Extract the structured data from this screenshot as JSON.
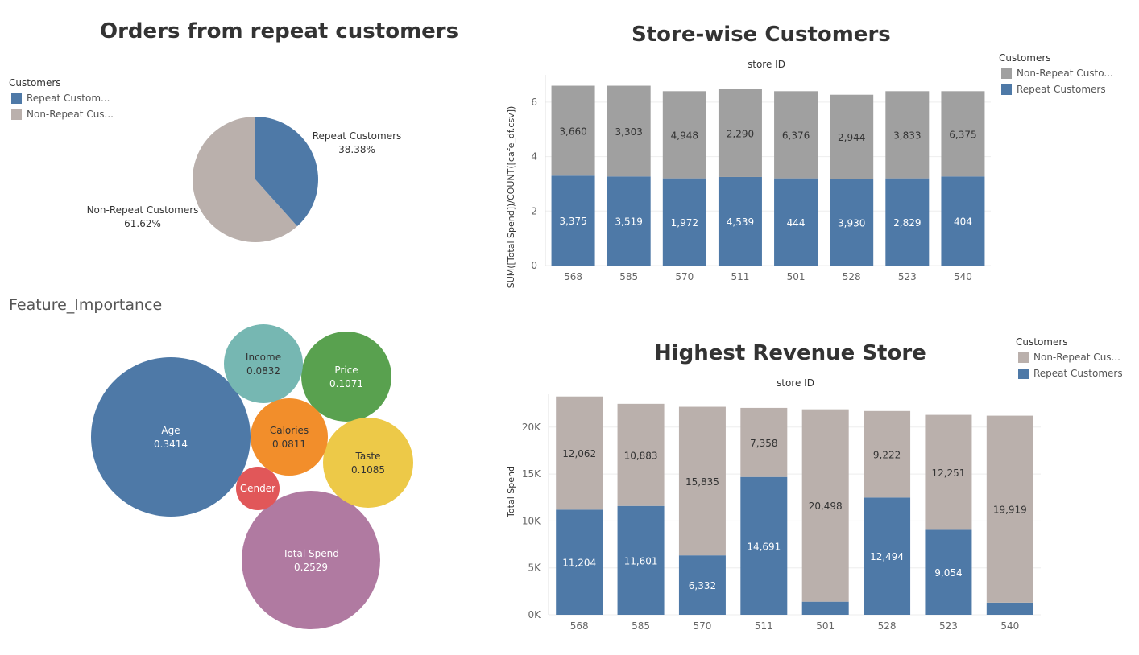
{
  "colors": {
    "repeat": "#4e79a7",
    "non_repeat_pie": "#bab0ac",
    "non_repeat_gray": "#a0a0a0",
    "text": "#333333"
  },
  "pie_panel": {
    "title": "Orders from repeat customers",
    "legend_title": "Customers",
    "legend_items": [
      "Repeat Custom...",
      "Non-Repeat Cus..."
    ],
    "label_repeat": "Repeat Customers",
    "label_repeat_pct": "38.38%",
    "label_nonrepeat": "Non-Repeat Customers",
    "label_nonrepeat_pct": "61.62%"
  },
  "bubble_panel": {
    "title": "Feature_Importance"
  },
  "store_panel": {
    "title": "Store-wise Customers",
    "axis_header": "store ID",
    "ylabel": "SUM([Total Spend])/COUNT([cafe_df.csv])",
    "legend_title": "Customers",
    "legend_items": [
      "Non-Repeat Custo...",
      "Repeat Customers"
    ]
  },
  "revenue_panel": {
    "title": "Highest Revenue Store",
    "axis_header": "store ID",
    "ylabel": "Total Spend",
    "legend_title": "Customers",
    "legend_items": [
      "Non-Repeat Cus...",
      "Repeat Customers"
    ]
  },
  "chart_data": [
    {
      "type": "pie",
      "title": "Orders from repeat customers",
      "categories": [
        "Repeat Customers",
        "Non-Repeat Customers"
      ],
      "values": [
        38.38,
        61.62
      ],
      "unit": "%"
    },
    {
      "type": "bubble",
      "title": "Feature_Importance",
      "categories": [
        "Age",
        "Total Spend",
        "Price",
        "Taste",
        "Income",
        "Calories",
        "Gender"
      ],
      "values": [
        0.3414,
        0.2529,
        0.1071,
        0.1085,
        0.0832,
        0.0811,
        null
      ],
      "labels": [
        "0.3414",
        "0.2529",
        "0.1071",
        "0.1085",
        "0.0832",
        "0.0811",
        ""
      ],
      "colors": [
        "#4e79a7",
        "#b07aa1",
        "#59a14f",
        "#edc948",
        "#76b7b2",
        "#f28e2b",
        "#e15759"
      ]
    },
    {
      "type": "bar",
      "stacked": true,
      "title": "Store-wise Customers",
      "xlabel": "store ID",
      "ylabel": "SUM([Total Spend])/COUNT([cafe_df.csv])",
      "categories": [
        "568",
        "585",
        "570",
        "511",
        "501",
        "528",
        "523",
        "540"
      ],
      "ylim": [
        0,
        7
      ],
      "yticks": [
        0,
        2,
        4,
        6
      ],
      "series": [
        {
          "name": "Repeat Customers",
          "values": [
            3.3,
            3.27,
            3.2,
            3.25,
            3.2,
            3.17,
            3.2,
            3.27
          ],
          "labels": [
            "3,375",
            "3,519",
            "1,972",
            "4,539",
            "444",
            "3,930",
            "2,829",
            "404"
          ]
        },
        {
          "name": "Non-Repeat Customers",
          "values": [
            3.3,
            3.33,
            3.2,
            3.22,
            3.2,
            3.1,
            3.2,
            3.13
          ],
          "labels": [
            "3,660",
            "3,303",
            "4,948",
            "2,290",
            "6,376",
            "2,944",
            "3,833",
            "6,375"
          ]
        }
      ]
    },
    {
      "type": "bar",
      "stacked": true,
      "title": "Highest Revenue Store",
      "xlabel": "store ID",
      "ylabel": "Total Spend",
      "categories": [
        "568",
        "585",
        "570",
        "511",
        "501",
        "528",
        "523",
        "540"
      ],
      "ylim": [
        0,
        23500
      ],
      "yticks": [
        0,
        5000,
        10000,
        15000,
        20000
      ],
      "ytick_labels": [
        "0K",
        "5K",
        "10K",
        "15K",
        "20K"
      ],
      "series": [
        {
          "name": "Repeat Customers",
          "values": [
            11204,
            11601,
            6332,
            14691,
            1400,
            12494,
            9054,
            1300
          ],
          "labels": [
            "11,204",
            "11,601",
            "6,332",
            "14,691",
            "",
            "12,494",
            "9,054",
            ""
          ]
        },
        {
          "name": "Non-Repeat Customers",
          "values": [
            12062,
            10883,
            15835,
            7358,
            20498,
            9222,
            12251,
            19919
          ],
          "labels": [
            "12,062",
            "10,883",
            "15,835",
            "7,358",
            "20,498",
            "9,222",
            "12,251",
            "19,919"
          ]
        }
      ]
    }
  ]
}
